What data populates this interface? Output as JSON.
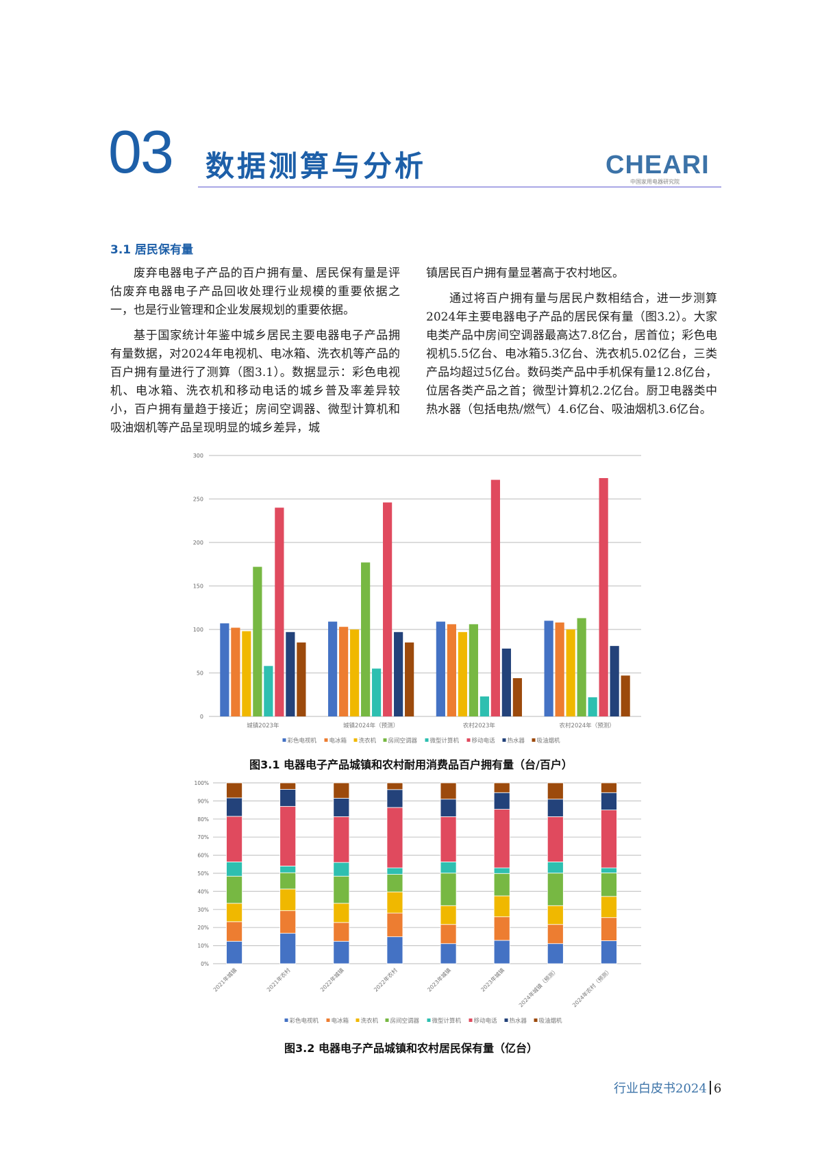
{
  "header": {
    "chapter_number": "03",
    "chapter_title": "数据测算与分析",
    "logo_text": "CHEARI",
    "logo_subtext": "中国家用电器研究院"
  },
  "section": {
    "title": "3.1 居民保有量"
  },
  "left_column": [
    "废弃电器电子产品的百户拥有量、居民保有量是评估废弃电器电子产品回收处理行业规模的重要依据之一，也是行业管理和企业发展规划的重要依据。",
    "基于国家统计年鉴中城乡居民主要电器电子产品拥有量数据，对2024年电视机、电冰箱、洗衣机等产品的百户拥有量进行了测算（图3.1）。数据显示：彩色电视机、电冰箱、洗衣机和移动电话的城乡普及率差异较小，百户拥有量趋于接近；房间空调器、微型计算机和吸油烟机等产品呈现明显的城乡差异，城"
  ],
  "right_column": [
    "镇居民百户拥有量显著高于农村地区。",
    "通过将百户拥有量与居民户数相结合，进一步测算2024年主要电器电子产品的居民保有量（图3.2）。大家电类产品中房间空调器最高达7.8亿台，居首位；彩色电视机5.5亿台、电冰箱5.3亿台、洗衣机5.02亿台，三类产品均超过5亿台。数码类产品中手机保有量12.8亿台，位居各类产品之首；微型计算机2.2亿台。厨卫电器类中热水器（包括电热/燃气）4.6亿台、吸油烟机3.6亿台。"
  ],
  "colors": {
    "彩色电视机": "#4472c4",
    "电冰箱": "#ed7d31",
    "洗衣机": "#f0b800",
    "房间空调器": "#77b843",
    "微型计算机": "#2ebfb0",
    "移动电话": "#e04a5e",
    "热水器": "#23427a",
    "吸油烟机": "#9c4a0c"
  },
  "chart_data": [
    {
      "type": "bar",
      "title": "图3.1 电器电子产品城镇和农村耐用消费品百户拥有量（台/百户）",
      "categories": [
        "城镇2023年",
        "城镇2024年（预测）",
        "农村2023年",
        "农村2024年（预测）"
      ],
      "ylim": [
        0,
        300
      ],
      "yticks": [
        0,
        50,
        100,
        150,
        200,
        250,
        300
      ],
      "legend_position": "bottom",
      "grid": true,
      "series": [
        {
          "name": "彩色电视机",
          "values": [
            107,
            109,
            109,
            110
          ]
        },
        {
          "name": "电冰箱",
          "values": [
            102,
            103,
            106,
            108
          ]
        },
        {
          "name": "洗衣机",
          "values": [
            98,
            100,
            97,
            100
          ]
        },
        {
          "name": "房间空调器",
          "values": [
            172,
            177,
            106,
            113
          ]
        },
        {
          "name": "微型计算机",
          "values": [
            58,
            55,
            23,
            22
          ]
        },
        {
          "name": "移动电话",
          "values": [
            240,
            246,
            272,
            274
          ]
        },
        {
          "name": "热水器",
          "values": [
            97,
            97,
            78,
            81
          ]
        },
        {
          "name": "吸油烟机",
          "values": [
            85,
            85,
            44,
            47
          ]
        }
      ]
    },
    {
      "type": "bar",
      "stacked": "percent",
      "title": "图3.2 电器电子产品城镇和农村居民保有量（亿台）",
      "categories": [
        "2021年城镇",
        "2021年农村",
        "2022年城镇",
        "2022年农村",
        "2023年城镇",
        "2023年城镇",
        "2024年城镇（预测）",
        "2024年农村（预测）"
      ],
      "ylim": [
        0,
        100
      ],
      "yticks": [
        "0%",
        "10%",
        "20%",
        "30%",
        "40%",
        "50%",
        "60%",
        "70%",
        "80%",
        "90%",
        "100%"
      ],
      "legend_position": "bottom",
      "grid": true,
      "series": [
        {
          "name": "彩色电视机",
          "values": [
            12.4,
            16.8,
            12.4,
            14.9,
            11.1,
            12.9,
            11.1,
            12.7
          ]
        },
        {
          "name": "电冰箱",
          "values": [
            10.8,
            12.5,
            10.4,
            13.1,
            10.6,
            13.0,
            10.6,
            12.8
          ]
        },
        {
          "name": "洗衣机",
          "values": [
            10.2,
            12.0,
            10.6,
            11.7,
            10.4,
            11.6,
            10.4,
            11.7
          ]
        },
        {
          "name": "房间空调器",
          "values": [
            15.0,
            9.0,
            15.0,
            9.7,
            18.0,
            12.4,
            18.0,
            13.0
          ]
        },
        {
          "name": "微型计算机",
          "values": [
            7.9,
            3.7,
            7.6,
            3.6,
            6.2,
            3.1,
            6.2,
            2.8
          ]
        },
        {
          "name": "移动电话",
          "values": [
            25.2,
            33.0,
            25.3,
            33.4,
            25.0,
            32.4,
            25.0,
            32.0
          ]
        },
        {
          "name": "热水器",
          "values": [
            10.2,
            9.4,
            10.2,
            9.9,
            9.7,
            9.2,
            9.7,
            9.6
          ]
        },
        {
          "name": "吸油烟机",
          "values": [
            8.3,
            3.6,
            8.5,
            3.7,
            9.0,
            5.4,
            9.0,
            5.4
          ]
        }
      ]
    }
  ],
  "footer": {
    "title": "行业白皮书2024",
    "page": "6"
  }
}
